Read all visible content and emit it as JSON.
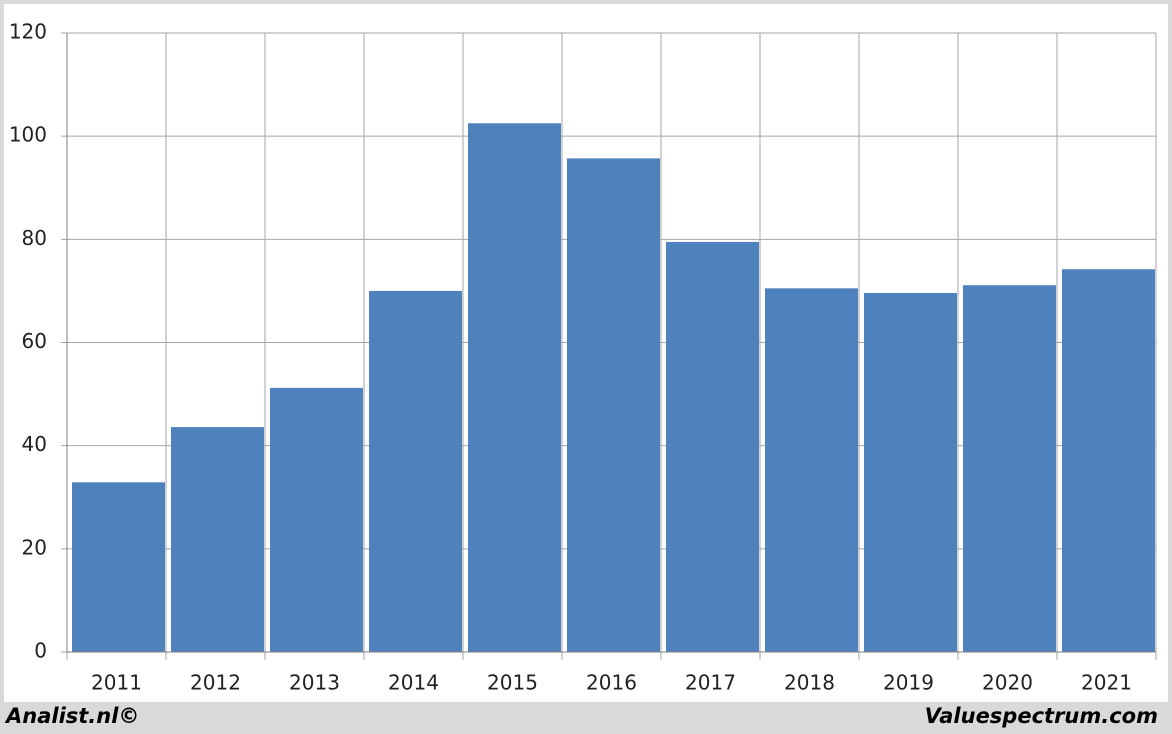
{
  "chart_data": {
    "type": "bar",
    "categories": [
      "2011",
      "2012",
      "2013",
      "2014",
      "2015",
      "2016",
      "2017",
      "2018",
      "2019",
      "2020",
      "2021"
    ],
    "values": [
      32.9,
      43.6,
      51.2,
      70.0,
      102.5,
      95.7,
      79.5,
      70.5,
      69.6,
      71.1,
      74.2
    ],
    "color": "#4f81bd",
    "ylim": [
      0,
      120
    ],
    "yticks": [
      0,
      20,
      40,
      60,
      80,
      100,
      120
    ],
    "grid": true,
    "footer_left": "Analist.nl©",
    "footer_right": "Valuespectrum.com"
  }
}
